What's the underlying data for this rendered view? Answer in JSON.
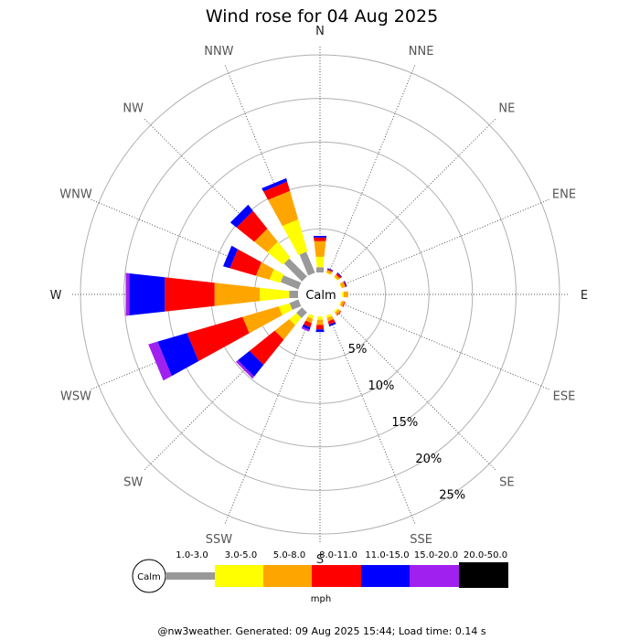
{
  "chart_data": {
    "type": "windrose",
    "title": "Wind rose for 04 Aug 2025",
    "directions": [
      "N",
      "NNE",
      "NE",
      "ENE",
      "E",
      "ESE",
      "SE",
      "SSE",
      "S",
      "SSW",
      "SW",
      "WSW",
      "W",
      "WNW",
      "NW",
      "NNW"
    ],
    "calm_label": "Calm",
    "unit": "mph",
    "rings": [
      5,
      10,
      15,
      20,
      25
    ],
    "ring_labels": [
      "5%",
      "10%",
      "15%",
      "20%",
      "25%"
    ],
    "rmax": 25,
    "bins": [
      {
        "label": "1.0-3.0",
        "color": "#999999"
      },
      {
        "label": "3.0-5.0",
        "color": "#ffff00"
      },
      {
        "label": "5.0-8.0",
        "color": "#ffa500"
      },
      {
        "label": "8.0-11.0",
        "color": "#ff0000"
      },
      {
        "label": "11.0-15.0",
        "color": "#0000ff"
      },
      {
        "label": "15.0-20.0",
        "color": "#a020f0"
      },
      {
        "label": "20.0-50.0",
        "color": "#000000"
      }
    ],
    "series": [
      {
        "direction": "N",
        "values": [
          0.6,
          1.2,
          1.8,
          0.4,
          0.2,
          0.0,
          0.0
        ]
      },
      {
        "direction": "NNE",
        "values": [
          0.0,
          0.1,
          0.3,
          0.1,
          0.1,
          0.0,
          0.0
        ]
      },
      {
        "direction": "NE",
        "values": [
          0.0,
          0.1,
          0.3,
          0.2,
          0.1,
          0.0,
          0.0
        ]
      },
      {
        "direction": "ENE",
        "values": [
          0.0,
          0.1,
          0.4,
          0.1,
          0.1,
          0.0,
          0.0
        ]
      },
      {
        "direction": "E",
        "values": [
          0.0,
          0.2,
          0.5,
          0.0,
          0.0,
          0.0,
          0.0
        ]
      },
      {
        "direction": "ESE",
        "values": [
          0.0,
          0.1,
          0.3,
          0.1,
          0.0,
          0.0,
          0.0
        ]
      },
      {
        "direction": "SE",
        "values": [
          0.0,
          0.2,
          0.3,
          0.1,
          0.0,
          0.0,
          0.0
        ]
      },
      {
        "direction": "SSE",
        "values": [
          0.0,
          0.3,
          0.4,
          0.4,
          0.2,
          0.0,
          0.0
        ]
      },
      {
        "direction": "S",
        "values": [
          0.0,
          0.4,
          0.6,
          0.5,
          0.3,
          0.0,
          0.0
        ]
      },
      {
        "direction": "SSW",
        "values": [
          0.0,
          0.4,
          0.5,
          0.5,
          0.3,
          0.2,
          0.0
        ]
      },
      {
        "direction": "SW",
        "values": [
          0.9,
          1.1,
          2.1,
          3.7,
          1.7,
          0.3,
          0.0
        ]
      },
      {
        "direction": "WSW",
        "values": [
          1.1,
          1.3,
          4.3,
          6.6,
          3.5,
          1.1,
          0.0
        ]
      },
      {
        "direction": "W",
        "values": [
          1.0,
          3.4,
          5.2,
          5.7,
          4.1,
          0.4,
          0.0
        ]
      },
      {
        "direction": "WNW",
        "values": [
          2.2,
          1.3,
          1.6,
          3.1,
          0.8,
          0.0,
          0.0
        ]
      },
      {
        "direction": "NW",
        "values": [
          2.9,
          2.3,
          1.9,
          2.6,
          0.9,
          0.0,
          0.0
        ]
      },
      {
        "direction": "NNW",
        "values": [
          2.6,
          3.8,
          3.4,
          1.1,
          0.4,
          0.0,
          0.0
        ]
      }
    ]
  },
  "footer": "@nw3weather. Generated: 09 Aug 2025 15:44; Load time: 0.14 s"
}
